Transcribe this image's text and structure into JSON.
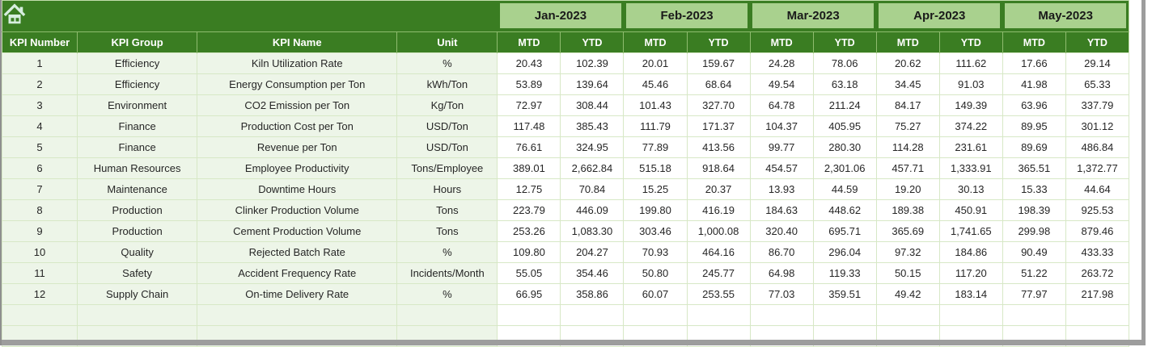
{
  "table": {
    "row_headers": [
      "KPI Number",
      "KPI Group",
      "KPI Name",
      "Unit"
    ],
    "months": [
      "Jan-2023",
      "Feb-2023",
      "Mar-2023",
      "Apr-2023",
      "May-2023"
    ],
    "sub_headers": [
      "MTD",
      "YTD"
    ],
    "rows": [
      {
        "number": "1",
        "group": "Efficiency",
        "name": "Kiln Utilization Rate",
        "unit": "%",
        "values": [
          "20.43",
          "102.39",
          "20.01",
          "159.67",
          "24.28",
          "78.06",
          "20.62",
          "111.62",
          "17.66",
          "29.14"
        ]
      },
      {
        "number": "2",
        "group": "Efficiency",
        "name": "Energy Consumption per Ton",
        "unit": "kWh/Ton",
        "values": [
          "53.89",
          "139.64",
          "45.46",
          "68.64",
          "49.54",
          "63.18",
          "34.45",
          "91.03",
          "41.98",
          "65.33"
        ]
      },
      {
        "number": "3",
        "group": "Environment",
        "name": "CO2 Emission per Ton",
        "unit": "Kg/Ton",
        "values": [
          "72.97",
          "308.44",
          "101.43",
          "327.70",
          "64.78",
          "211.24",
          "84.17",
          "149.39",
          "63.96",
          "337.79"
        ]
      },
      {
        "number": "4",
        "group": "Finance",
        "name": "Production Cost per Ton",
        "unit": "USD/Ton",
        "values": [
          "117.48",
          "385.43",
          "111.79",
          "171.37",
          "104.37",
          "405.95",
          "75.27",
          "374.22",
          "89.95",
          "301.12"
        ]
      },
      {
        "number": "5",
        "group": "Finance",
        "name": "Revenue per Ton",
        "unit": "USD/Ton",
        "values": [
          "76.61",
          "324.95",
          "77.89",
          "413.56",
          "99.77",
          "280.30",
          "114.28",
          "231.61",
          "89.69",
          "486.84"
        ]
      },
      {
        "number": "6",
        "group": "Human Resources",
        "name": "Employee Productivity",
        "unit": "Tons/Employee",
        "values": [
          "389.01",
          "2,662.84",
          "515.18",
          "918.64",
          "454.57",
          "2,301.06",
          "457.71",
          "1,333.91",
          "365.51",
          "1,372.77"
        ]
      },
      {
        "number": "7",
        "group": "Maintenance",
        "name": "Downtime Hours",
        "unit": "Hours",
        "values": [
          "12.75",
          "70.84",
          "15.25",
          "20.37",
          "13.93",
          "44.59",
          "19.20",
          "30.13",
          "15.33",
          "44.64"
        ]
      },
      {
        "number": "8",
        "group": "Production",
        "name": "Clinker Production Volume",
        "unit": "Tons",
        "values": [
          "223.79",
          "446.09",
          "199.80",
          "416.19",
          "184.63",
          "448.62",
          "189.38",
          "450.91",
          "198.39",
          "925.53"
        ]
      },
      {
        "number": "9",
        "group": "Production",
        "name": "Cement Production Volume",
        "unit": "Tons",
        "values": [
          "253.26",
          "1,083.30",
          "303.46",
          "1,000.08",
          "320.40",
          "695.71",
          "365.69",
          "1,741.65",
          "299.98",
          "879.46"
        ]
      },
      {
        "number": "10",
        "group": "Quality",
        "name": "Rejected Batch Rate",
        "unit": "%",
        "values": [
          "109.80",
          "204.27",
          "70.93",
          "464.16",
          "86.70",
          "296.04",
          "97.32",
          "184.86",
          "90.49",
          "433.33"
        ]
      },
      {
        "number": "11",
        "group": "Safety",
        "name": "Accident Frequency Rate",
        "unit": "Incidents/Month",
        "values": [
          "55.05",
          "354.46",
          "50.80",
          "245.77",
          "64.98",
          "119.33",
          "50.15",
          "117.20",
          "51.22",
          "263.72"
        ]
      },
      {
        "number": "12",
        "group": "Supply Chain",
        "name": "On-time Delivery Rate",
        "unit": "%",
        "values": [
          "66.95",
          "358.86",
          "60.07",
          "253.55",
          "77.03",
          "359.51",
          "49.42",
          "183.14",
          "77.97",
          "217.98"
        ]
      }
    ],
    "empty_row_count": 2
  },
  "icons": {
    "home": "home-icon"
  },
  "colors": {
    "header_green": "#3A7D22",
    "month_band_green": "#A9D18E",
    "row_tint_green": "#EDF5E8",
    "grid_line_green": "#D7E8C6",
    "header_text": "#FFFFFF",
    "data_text": "#262626",
    "frame_gray": "#9D9D9D",
    "home_icon_mint": "#D7EEDF"
  }
}
